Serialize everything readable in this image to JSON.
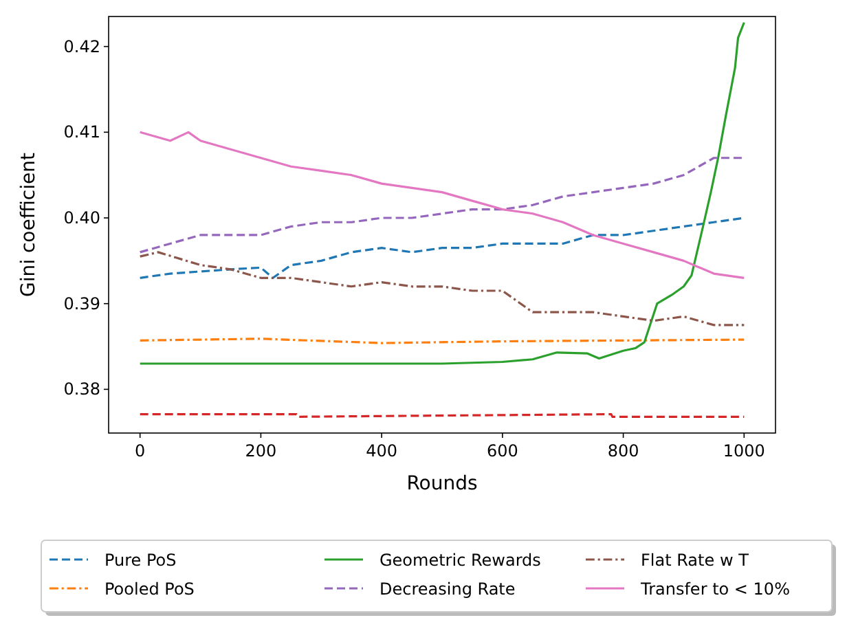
{
  "chart_data": {
    "type": "line",
    "xlabel": "Rounds",
    "ylabel": "Gini coefficient",
    "xlim": [
      -52,
      1052
    ],
    "ylim": [
      0.3749,
      0.4235
    ],
    "xticks": [
      0,
      200,
      400,
      600,
      800,
      1000
    ],
    "yticks": [
      0.38,
      0.39,
      {
        "value": 0.4,
        "label": "0.40"
      },
      0.41,
      0.42
    ],
    "legend": "bottom",
    "grid": false,
    "series": [
      {
        "name": "Pure PoS",
        "color": "#1f77b4",
        "line_style": "dashed",
        "x": [
          0,
          50,
          150,
          200,
          220,
          250,
          300,
          350,
          400,
          450,
          500,
          550,
          600,
          650,
          700,
          750,
          800,
          850,
          900,
          950,
          1000
        ],
        "values": [
          0.393,
          0.3935,
          0.394,
          0.3942,
          0.393,
          0.3945,
          0.395,
          0.396,
          0.3965,
          0.396,
          0.3965,
          0.3965,
          0.397,
          0.397,
          0.397,
          0.398,
          0.398,
          0.3985,
          0.399,
          0.3995,
          0.4
        ]
      },
      {
        "name": "Pooled PoS",
        "color": "#ff7f0e",
        "line_style": "dashdot",
        "x": [
          0,
          200,
          400,
          600,
          800,
          1000
        ],
        "values": [
          0.3857,
          0.3859,
          0.3854,
          0.3856,
          0.3857,
          0.3858
        ]
      },
      {
        "name": "Geometric Rewards",
        "color": "#2ca02c",
        "line_style": "solid",
        "x": [
          0,
          500,
          600,
          650,
          690,
          740,
          760,
          800,
          820,
          835,
          856,
          880,
          900,
          913,
          932,
          945,
          957,
          970,
          985,
          990,
          1000
        ],
        "values": [
          0.383,
          0.383,
          0.3832,
          0.3835,
          0.3843,
          0.3842,
          0.3836,
          0.3845,
          0.3848,
          0.3855,
          0.39,
          0.391,
          0.392,
          0.3933,
          0.399,
          0.403,
          0.407,
          0.412,
          0.4175,
          0.421,
          0.4228
        ]
      },
      {
        "color": "#d62728",
        "line_style": "dashed",
        "x": [
          0,
          259,
          261,
          780,
          782,
          1000
        ],
        "values": [
          0.3771,
          0.3771,
          0.3768,
          0.3771,
          0.3768,
          0.3768
        ]
      },
      {
        "name": "Decreasing Rate",
        "color": "#9467bd",
        "line_style": "dashed",
        "x": [
          0,
          50,
          100,
          150,
          200,
          250,
          300,
          350,
          400,
          450,
          500,
          550,
          600,
          650,
          700,
          750,
          800,
          850,
          900,
          950,
          1000
        ],
        "values": [
          0.396,
          0.397,
          0.398,
          0.398,
          0.398,
          0.399,
          0.3995,
          0.3995,
          0.4,
          0.4,
          0.4005,
          0.401,
          0.401,
          0.4015,
          0.4025,
          0.403,
          0.4035,
          0.404,
          0.405,
          0.407,
          0.407
        ]
      },
      {
        "name": "Flat Rate w T",
        "color": "#8c564b",
        "line_style": "dashdot",
        "x": [
          0,
          30,
          100,
          150,
          200,
          250,
          300,
          350,
          400,
          450,
          500,
          550,
          600,
          630,
          650,
          700,
          750,
          800,
          850,
          900,
          950,
          1000
        ],
        "values": [
          0.3955,
          0.396,
          0.3945,
          0.394,
          0.393,
          0.393,
          0.3925,
          0.392,
          0.3925,
          0.392,
          0.392,
          0.3915,
          0.3915,
          0.39,
          0.389,
          0.389,
          0.389,
          0.3885,
          0.388,
          0.3885,
          0.3875,
          0.3875
        ]
      },
      {
        "name": "Transfer to < 10%",
        "color": "#e377c2",
        "line_style": "solid",
        "x": [
          0,
          50,
          80,
          100,
          150,
          200,
          250,
          300,
          350,
          400,
          450,
          500,
          550,
          600,
          650,
          700,
          750,
          800,
          850,
          900,
          950,
          1000
        ],
        "values": [
          0.41,
          0.409,
          0.41,
          0.409,
          0.408,
          0.407,
          0.406,
          0.4055,
          0.405,
          0.404,
          0.4035,
          0.403,
          0.402,
          0.401,
          0.4005,
          0.3995,
          0.398,
          0.397,
          0.396,
          0.395,
          0.3935,
          0.393
        ]
      }
    ]
  }
}
